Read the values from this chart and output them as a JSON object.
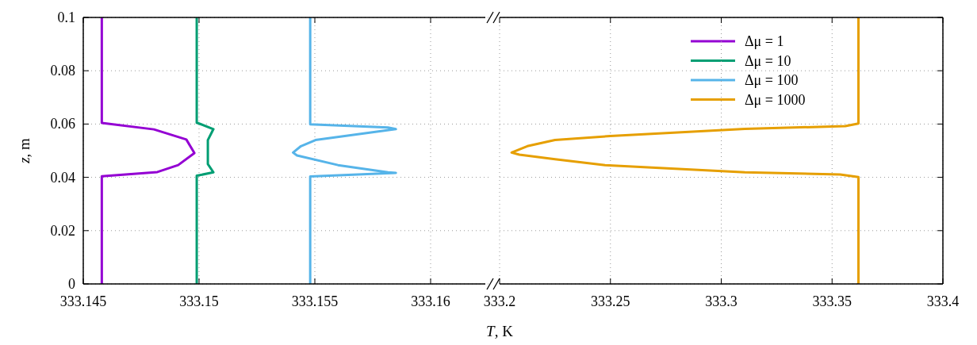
{
  "chart_data": [
    {
      "type": "line",
      "ylabel": "z, m",
      "xlim": [
        333.145,
        333.1625
      ],
      "xticks": [
        333.145,
        333.15,
        333.155,
        333.16
      ],
      "ylim": [
        0,
        0.1
      ],
      "yticks": [
        0,
        0.02,
        0.04,
        0.06,
        0.08,
        0.1
      ],
      "grid": true,
      "legend": "top right",
      "line_style": "solid",
      "series": [
        {
          "name": "Δμ = 1",
          "color": "#9400d3",
          "x": [
            333.1458,
            333.1458,
            333.1482,
            333.1491,
            333.1498,
            333.14945,
            333.14805,
            333.1458,
            333.1458
          ],
          "values": [
            0,
            0.0404,
            0.042,
            0.0446,
            0.0491,
            0.0542,
            0.058,
            0.0604,
            0.1
          ]
        },
        {
          "name": "Δμ = 10",
          "color": "#009e73",
          "x": [
            333.1499,
            333.1499,
            333.15062,
            333.15038,
            333.15038,
            333.15038,
            333.15062,
            333.15,
            333.1499,
            333.1499
          ],
          "values": [
            0,
            0.0406,
            0.0419,
            0.045,
            0.0491,
            0.054,
            0.0581,
            0.0602,
            0.0605,
            0.1
          ]
        },
        {
          "name": "Δμ = 100",
          "color": "#56b4e9",
          "x": [
            333.1548,
            333.1548,
            333.1585,
            333.15816,
            333.156,
            333.15423,
            333.15406,
            333.1544,
            333.15503,
            333.1585,
            333.15816,
            333.1548,
            333.1548
          ],
          "values": [
            0,
            0.0403,
            0.0417,
            0.0419,
            0.0446,
            0.0482,
            0.0493,
            0.0517,
            0.054,
            0.0581,
            0.0587,
            0.0599,
            0.1
          ]
        }
      ]
    },
    {
      "type": "line",
      "xlabel": "T, K",
      "xlim": [
        333.2,
        333.4
      ],
      "xticks": [
        333.2,
        333.25,
        333.3,
        333.35,
        333.4
      ],
      "ylim": [
        0,
        0.1
      ],
      "yticks": [
        0,
        0.02,
        0.04,
        0.06,
        0.08,
        0.1
      ],
      "tick_labels": "x",
      "grid": true,
      "legend": "top right",
      "line_style": "solid",
      "series": [
        {
          "name": "Δμ = 1000",
          "color": "#e69f00",
          "x": [
            333.3619,
            333.3619,
            333.3536,
            333.3107,
            333.2476,
            333.225,
            333.2089,
            333.2054,
            333.2125,
            333.225,
            333.25,
            333.3107,
            333.356,
            333.3619,
            333.3619
          ],
          "values": [
            0,
            0.0401,
            0.0411,
            0.0419,
            0.0446,
            0.0468,
            0.0485,
            0.0493,
            0.0517,
            0.054,
            0.0555,
            0.0582,
            0.0592,
            0.0602,
            0.1
          ]
        }
      ]
    }
  ]
}
